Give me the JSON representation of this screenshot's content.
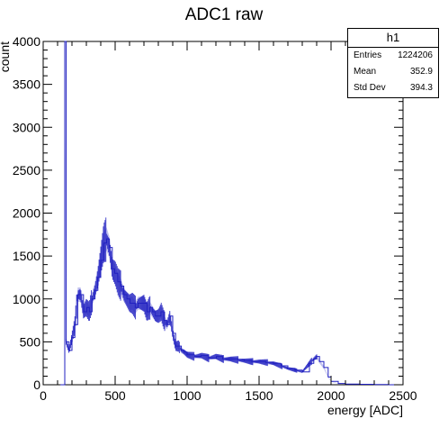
{
  "chart_data": {
    "type": "histogram",
    "title": "ADC1 raw",
    "xlabel": "energy [ADC]",
    "ylabel": "count",
    "xlim": [
      0,
      2500
    ],
    "ylim": [
      0,
      4000
    ],
    "xticks": [
      "0",
      "500",
      "1000",
      "1500",
      "2000",
      "2500"
    ],
    "yticks": [
      "0",
      "500",
      "1000",
      "1500",
      "2000",
      "2500",
      "3000",
      "3500",
      "4000"
    ],
    "grid": false,
    "series": [
      {
        "name": "h1",
        "color": "#2020c0",
        "x": [
          120,
          140,
          150,
          160,
          180,
          200,
          220,
          240,
          260,
          280,
          300,
          320,
          340,
          360,
          380,
          400,
          420,
          440,
          460,
          480,
          500,
          520,
          540,
          560,
          580,
          600,
          620,
          640,
          660,
          680,
          700,
          720,
          740,
          760,
          780,
          800,
          820,
          840,
          860,
          880,
          900,
          920,
          940,
          960,
          980,
          1000,
          1050,
          1100,
          1150,
          1200,
          1250,
          1300,
          1350,
          1400,
          1450,
          1500,
          1550,
          1600,
          1650,
          1700,
          1750,
          1800,
          1850,
          1880,
          1900,
          1920,
          1950,
          1980,
          2000,
          2050,
          2100,
          2200,
          2300,
          2400,
          2500
        ],
        "y": [
          0,
          0,
          4000,
          500,
          400,
          550,
          700,
          1050,
          1050,
          850,
          900,
          850,
          1000,
          1100,
          1250,
          1450,
          1650,
          1700,
          1600,
          1350,
          1300,
          1200,
          1150,
          1050,
          1000,
          950,
          950,
          900,
          950,
          950,
          950,
          850,
          900,
          850,
          800,
          800,
          850,
          750,
          700,
          800,
          600,
          450,
          450,
          400,
          380,
          350,
          330,
          340,
          310,
          330,
          300,
          300,
          290,
          280,
          270,
          270,
          260,
          250,
          220,
          190,
          170,
          150,
          250,
          300,
          330,
          270,
          200,
          90,
          40,
          15,
          8,
          5,
          3,
          0,
          0
        ]
      }
    ]
  },
  "stats": {
    "title": "h1",
    "rows": [
      {
        "label": "Entries",
        "value": "1224206"
      },
      {
        "label": "Mean",
        "value": "352.9"
      },
      {
        "label": "Std Dev",
        "value": "394.3"
      }
    ]
  }
}
